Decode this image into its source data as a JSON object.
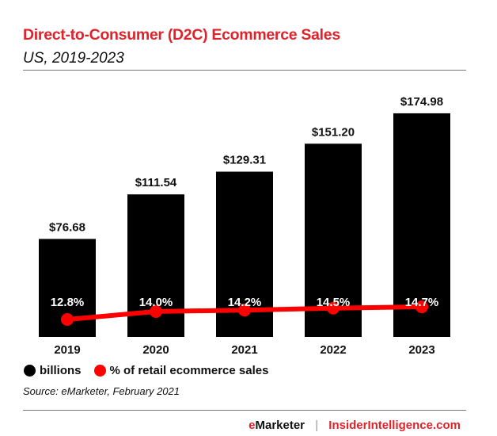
{
  "chart_data": {
    "type": "bar",
    "title": "Direct-to-Consumer (D2C) Ecommerce Sales",
    "subtitle": "US, 2019-2023",
    "categories": [
      "2019",
      "2020",
      "2021",
      "2022",
      "2023"
    ],
    "series": [
      {
        "name": "billions",
        "type": "bar",
        "color": "#000000",
        "values": [
          76.68,
          111.54,
          129.31,
          151.2,
          174.98
        ],
        "labels": [
          "$76.68",
          "$111.54",
          "$129.31",
          "$151.20",
          "$174.98"
        ]
      },
      {
        "name": "% of retail ecommerce sales",
        "type": "line",
        "color": "#ff0000",
        "values": [
          12.8,
          14.0,
          14.2,
          14.5,
          14.7
        ],
        "labels": [
          "12.8%",
          "14.0%",
          "14.2%",
          "14.5%",
          "14.7%"
        ]
      }
    ],
    "legend": "bottom-left",
    "grid": false,
    "source": "Source: eMarketer, February 2021"
  },
  "footer": {
    "brand_e": "e",
    "brand_rest": "Marketer",
    "separator": "|",
    "site": "InsiderIntelligence.com"
  }
}
